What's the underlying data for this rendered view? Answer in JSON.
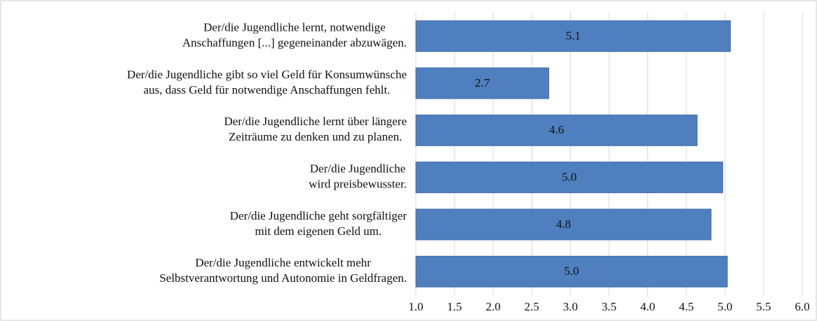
{
  "chart_data": {
    "type": "bar",
    "orientation": "horizontal",
    "categories": [
      [
        "Der/die Jugendliche lernt, notwendige",
        "Anschaffungen [...] gegeneinander abzuwägen."
      ],
      [
        "Der/die Jugendliche gibt so viel Geld für Konsumwünsche",
        "aus,  dass Geld für notwendige Anschaffungen fehlt."
      ],
      [
        "Der/die Jugendliche lernt über längere",
        "Zeiträume  zu denken und zu planen."
      ],
      [
        "Der/die Jugendliche",
        "wird preisbewusster."
      ],
      [
        "Der/die Jugendliche geht sorgfältiger",
        "mit dem eigenen Geld um."
      ],
      [
        "Der/die Jugendliche entwickelt mehr",
        "Selbstverantwortung und Autonomie in Geldfragen."
      ]
    ],
    "values": [
      5.07,
      2.72,
      4.64,
      4.97,
      4.82,
      5.03
    ],
    "value_labels": [
      "5.1",
      "2.7",
      "4.6",
      "5.0",
      "4.8",
      "5.0"
    ],
    "color": "#4f7fbe",
    "xlim": [
      1,
      6
    ],
    "xticks": [
      {
        "value": 1,
        "label": "1.0"
      },
      {
        "value": 1.5,
        "label": "1.5"
      },
      {
        "value": 2,
        "label": "2.0"
      },
      {
        "value": 2.5,
        "label": "2.5"
      },
      {
        "value": 3,
        "label": "3.0"
      },
      {
        "value": 3.5,
        "label": "3.5"
      },
      {
        "value": 4,
        "label": "4.0"
      },
      {
        "value": 4.5,
        "label": "4.5"
      },
      {
        "value": 5,
        "label": "5.0"
      },
      {
        "value": 5.5,
        "label": "5.5"
      },
      {
        "value": 6,
        "label": "6.0"
      }
    ],
    "grid": true
  }
}
